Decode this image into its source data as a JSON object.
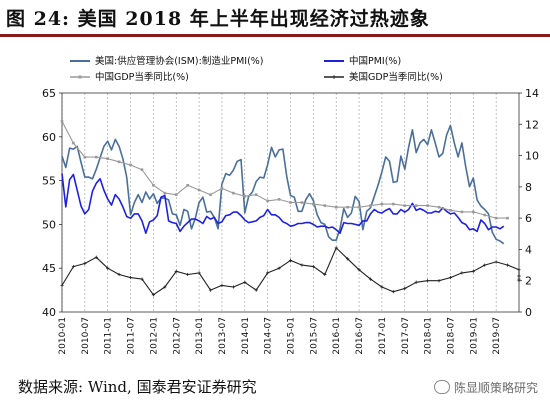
{
  "figure": {
    "title": "图 24: 美国 2018 年上半年出现经济过热迹象",
    "source": "数据来源: Wind, 国泰君安证券研究",
    "watermark": "陈显顺策略研究",
    "watermark_icon": "wechat-icon"
  },
  "colors": {
    "ism": "#4a6f9a",
    "pmi": "#1e22e0",
    "gdp": "#9a9a9a",
    "gdpq": "#222222",
    "title_rule": "#8a1a1a"
  },
  "chart_data": {
    "type": "line",
    "legend_position": "top",
    "grid": "vertical dashed",
    "x_tick_labels": [
      "2010-01",
      "2010-07",
      "2011-01",
      "2011-07",
      "2012-01",
      "2012-07",
      "2013-01",
      "2013-07",
      "2014-01",
      "2014-07",
      "2015-01",
      "2015-07",
      "2016-01",
      "2016-07",
      "2017-01",
      "2017-07",
      "2018-01",
      "2018-07",
      "2019-01",
      "2019-07"
    ],
    "y_left": {
      "min": 40,
      "max": 65,
      "ticks": [
        40,
        45,
        50,
        55,
        60,
        65
      ]
    },
    "y_right": {
      "min": 0,
      "max": 14,
      "ticks": [
        0,
        2,
        4,
        6,
        8,
        10,
        12,
        14
      ]
    },
    "series": [
      {
        "name": "美国:供应管理协会(ISM):制造业PMI(%)",
        "axis": "left",
        "color_key": "ism",
        "frequency": "monthly",
        "start": "2010-01",
        "values": [
          57.8,
          56.5,
          58.7,
          58.6,
          58.9,
          57.1,
          55.4,
          55.4,
          55.2,
          56.3,
          57.6,
          58.9,
          59.5,
          58.5,
          59.7,
          58.9,
          57.5,
          55.4,
          51.1,
          52.5,
          53.4,
          52.5,
          53.7,
          52.9,
          53.5,
          52.4,
          53.0,
          53.0,
          52.8,
          51.2,
          51.1,
          49.9,
          51.7,
          51.5,
          49.5,
          50.7,
          52.5,
          53.1,
          51.4,
          51.5,
          50.8,
          49.5,
          54.6,
          55.8,
          55.6,
          56.2,
          57.2,
          57.4,
          51.3,
          53.2,
          53.7,
          54.9,
          55.4,
          55.3,
          56.8,
          58.8,
          57.7,
          58.5,
          58.6,
          55.5,
          53.3,
          53.1,
          51.5,
          51.5,
          52.8,
          53.5,
          52.7,
          51.1,
          50.2,
          50.0,
          48.6,
          48.2,
          48.2,
          49.5,
          51.8,
          50.8,
          51.3,
          53.2,
          52.6,
          49.4,
          51.5,
          51.9,
          53.2,
          54.5,
          56.0,
          57.7,
          57.2,
          54.8,
          54.9,
          57.8,
          56.3,
          58.8,
          60.8,
          58.2,
          59.3,
          59.7,
          59.1,
          60.8,
          59.3,
          57.7,
          58.1,
          60.2,
          61.3,
          59.3,
          57.7,
          59.3,
          56.6,
          54.3,
          55.3,
          52.8,
          52.1,
          51.7,
          51.2,
          49.1,
          48.3,
          48.1,
          47.8
        ]
      },
      {
        "name": "中国PMI(%)",
        "axis": "left",
        "color_key": "pmi",
        "frequency": "monthly",
        "start": "2010-01",
        "values": [
          55.8,
          52.0,
          55.1,
          55.7,
          53.9,
          52.1,
          51.2,
          51.7,
          53.8,
          54.7,
          55.2,
          53.9,
          52.9,
          52.2,
          53.4,
          52.9,
          52.0,
          50.9,
          50.7,
          51.2,
          51.2,
          50.4,
          49.0,
          50.3,
          50.5,
          51.0,
          53.1,
          53.3,
          50.4,
          50.2,
          50.1,
          49.2,
          49.8,
          50.2,
          50.6,
          50.6,
          50.4,
          50.1,
          50.9,
          50.6,
          50.8,
          50.1,
          50.3,
          51.0,
          51.1,
          51.4,
          51.4,
          51.0,
          50.5,
          50.2,
          50.3,
          50.4,
          50.8,
          51.0,
          51.7,
          51.1,
          51.1,
          50.8,
          50.3,
          50.1,
          49.8,
          49.9,
          50.1,
          50.1,
          50.2,
          50.2,
          50.0,
          49.7,
          49.8,
          49.8,
          49.6,
          49.7,
          49.4,
          49.0,
          50.2,
          50.1,
          50.1,
          50.0,
          49.9,
          50.4,
          50.4,
          51.2,
          51.7,
          51.4,
          51.3,
          51.6,
          51.8,
          51.2,
          51.2,
          51.7,
          51.4,
          51.7,
          52.4,
          51.6,
          51.8,
          51.6,
          51.3,
          51.3,
          51.5,
          51.4,
          51.9,
          51.5,
          51.2,
          51.3,
          50.8,
          50.2,
          50.0,
          49.4,
          49.5,
          49.2,
          50.5,
          50.1,
          49.4,
          49.7,
          49.7,
          49.5,
          49.8
        ]
      },
      {
        "name": "中国GDP当季同比(%)",
        "axis": "right",
        "color_key": "gdp",
        "frequency": "quarterly",
        "start": "2010-01",
        "values": [
          12.2,
          10.8,
          9.9,
          9.9,
          9.8,
          9.6,
          9.4,
          9.1,
          8.1,
          7.6,
          7.5,
          8.1,
          7.8,
          7.5,
          7.9,
          7.6,
          7.4,
          7.5,
          7.1,
          7.2,
          7.0,
          7.0,
          6.9,
          6.8,
          6.7,
          6.7,
          6.7,
          6.8,
          6.9,
          6.9,
          6.8,
          6.8,
          6.8,
          6.7,
          6.5,
          6.4,
          6.4,
          6.2,
          6.0,
          6.0
        ]
      },
      {
        "name": "美国GDP当季同比(%)",
        "axis": "right",
        "color_key": "gdpq",
        "frequency": "quarterly",
        "start": "2010-01",
        "values": [
          1.7,
          2.9,
          3.1,
          3.5,
          2.8,
          2.4,
          2.2,
          2.1,
          1.1,
          1.6,
          2.6,
          2.4,
          2.5,
          1.4,
          1.7,
          1.6,
          1.9,
          1.4,
          2.5,
          2.8,
          3.3,
          3.0,
          2.9,
          2.4,
          4.1,
          3.4,
          2.7,
          2.1,
          1.6,
          1.3,
          1.5,
          1.9,
          2.0,
          2.0,
          2.2,
          2.5,
          2.6,
          3.0,
          3.2,
          3.0,
          2.7,
          2.3,
          2.0,
          2.1,
          2.3
        ]
      }
    ]
  }
}
